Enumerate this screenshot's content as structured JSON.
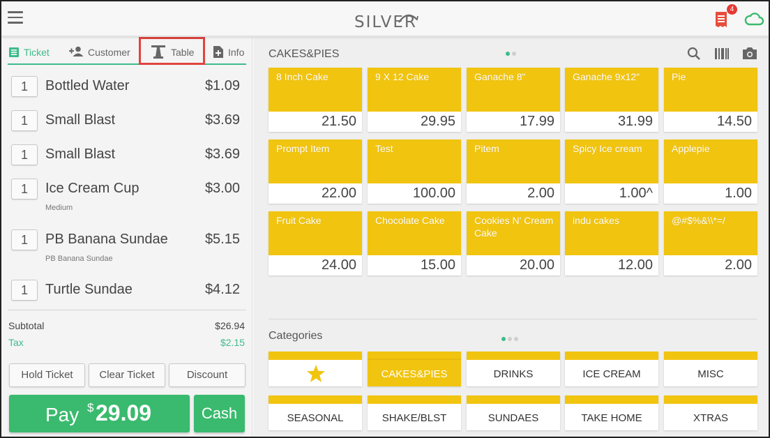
{
  "header": {
    "logo_text": "SILVER",
    "notification_count": "4",
    "icons": {
      "menu": "hamburger-menu-icon",
      "receipts": "receipt-icon",
      "sync": "cloud-icon"
    }
  },
  "tabs": [
    {
      "label": "Ticket",
      "icon": "list-icon",
      "active": true
    },
    {
      "label": "Customer",
      "icon": "add-person-icon",
      "active": false
    },
    {
      "label": "Table",
      "icon": "table-icon",
      "active": false
    },
    {
      "label": "Info",
      "icon": "add-doc-icon",
      "active": false
    }
  ],
  "ticket": {
    "items": [
      {
        "qty": "1",
        "name": "Bottled Water",
        "price": "$1.09",
        "modifier": ""
      },
      {
        "qty": "1",
        "name": "Small Blast",
        "price": "$3.69",
        "modifier": ""
      },
      {
        "qty": "1",
        "name": "Small Blast",
        "price": "$3.69",
        "modifier": ""
      },
      {
        "qty": "1",
        "name": "Ice Cream Cup",
        "price": "$3.00",
        "modifier": "Medium"
      },
      {
        "qty": "1",
        "name": "PB Banana Sundae",
        "price": "$5.15",
        "modifier": "PB Banana Sundae"
      },
      {
        "qty": "1",
        "name": "Turtle Sundae",
        "price": "$4.12",
        "modifier": ""
      }
    ],
    "subtotal_label": "Subtotal",
    "subtotal_value": "$26.94",
    "tax_label": "Tax",
    "tax_value": "$2.15",
    "hold_label": "Hold Ticket",
    "clear_label": "Clear Ticket",
    "discount_label": "Discount",
    "pay_label": "Pay",
    "pay_currency": "$",
    "pay_amount": "29.09",
    "cash_label": "Cash"
  },
  "products": {
    "section_title": "CAKES&PIES",
    "page_dots": 2,
    "active_dot": 0,
    "tool_icons": [
      "search-icon",
      "barcode-icon",
      "camera-icon"
    ],
    "items": [
      {
        "name": "8 Inch Cake",
        "price": "21.50"
      },
      {
        "name": "9 X 12 Cake",
        "price": "29.95"
      },
      {
        "name": "Ganache 8\"",
        "price": "17.99"
      },
      {
        "name": "Ganache 9x12\"",
        "price": "31.99"
      },
      {
        "name": "Pie",
        "price": "14.50"
      },
      {
        "name": "Prompt Item",
        "price": "22.00"
      },
      {
        "name": "Test",
        "price": "100.00"
      },
      {
        "name": "Pitem",
        "price": "2.00"
      },
      {
        "name": "Spicy Ice cream",
        "price": "1.00^"
      },
      {
        "name": "Applepie",
        "price": "1.00"
      },
      {
        "name": "Fruit Cake",
        "price": "24.00"
      },
      {
        "name": "Chocolate Cake",
        "price": "15.00"
      },
      {
        "name": "Cookies N' Cream Cake",
        "price": "20.00"
      },
      {
        "name": "indu cakes",
        "price": "12.00"
      },
      {
        "name": "@#$%&\\\\*=/",
        "price": "2.00"
      }
    ]
  },
  "categories": {
    "section_title": "Categories",
    "page_dots": 3,
    "active_dot": 0,
    "items": [
      {
        "name": "",
        "icon": "star-icon",
        "selected": false
      },
      {
        "name": "CAKES&PIES",
        "selected": true
      },
      {
        "name": "DRINKS",
        "selected": false
      },
      {
        "name": "ICE CREAM",
        "selected": false
      },
      {
        "name": "MISC",
        "selected": false
      },
      {
        "name": "SEASONAL",
        "selected": false
      },
      {
        "name": "SHAKE/BLST",
        "selected": false
      },
      {
        "name": "SUNDAES",
        "selected": false
      },
      {
        "name": "TAKE HOME",
        "selected": false
      },
      {
        "name": "XTRAS",
        "selected": false
      }
    ]
  },
  "colors": {
    "accent_green": "#3dbb8b",
    "pay_green": "#3aba6e",
    "tile_yellow": "#f1c40f",
    "highlight_red": "#e0443e",
    "badge_red": "#e53935"
  }
}
